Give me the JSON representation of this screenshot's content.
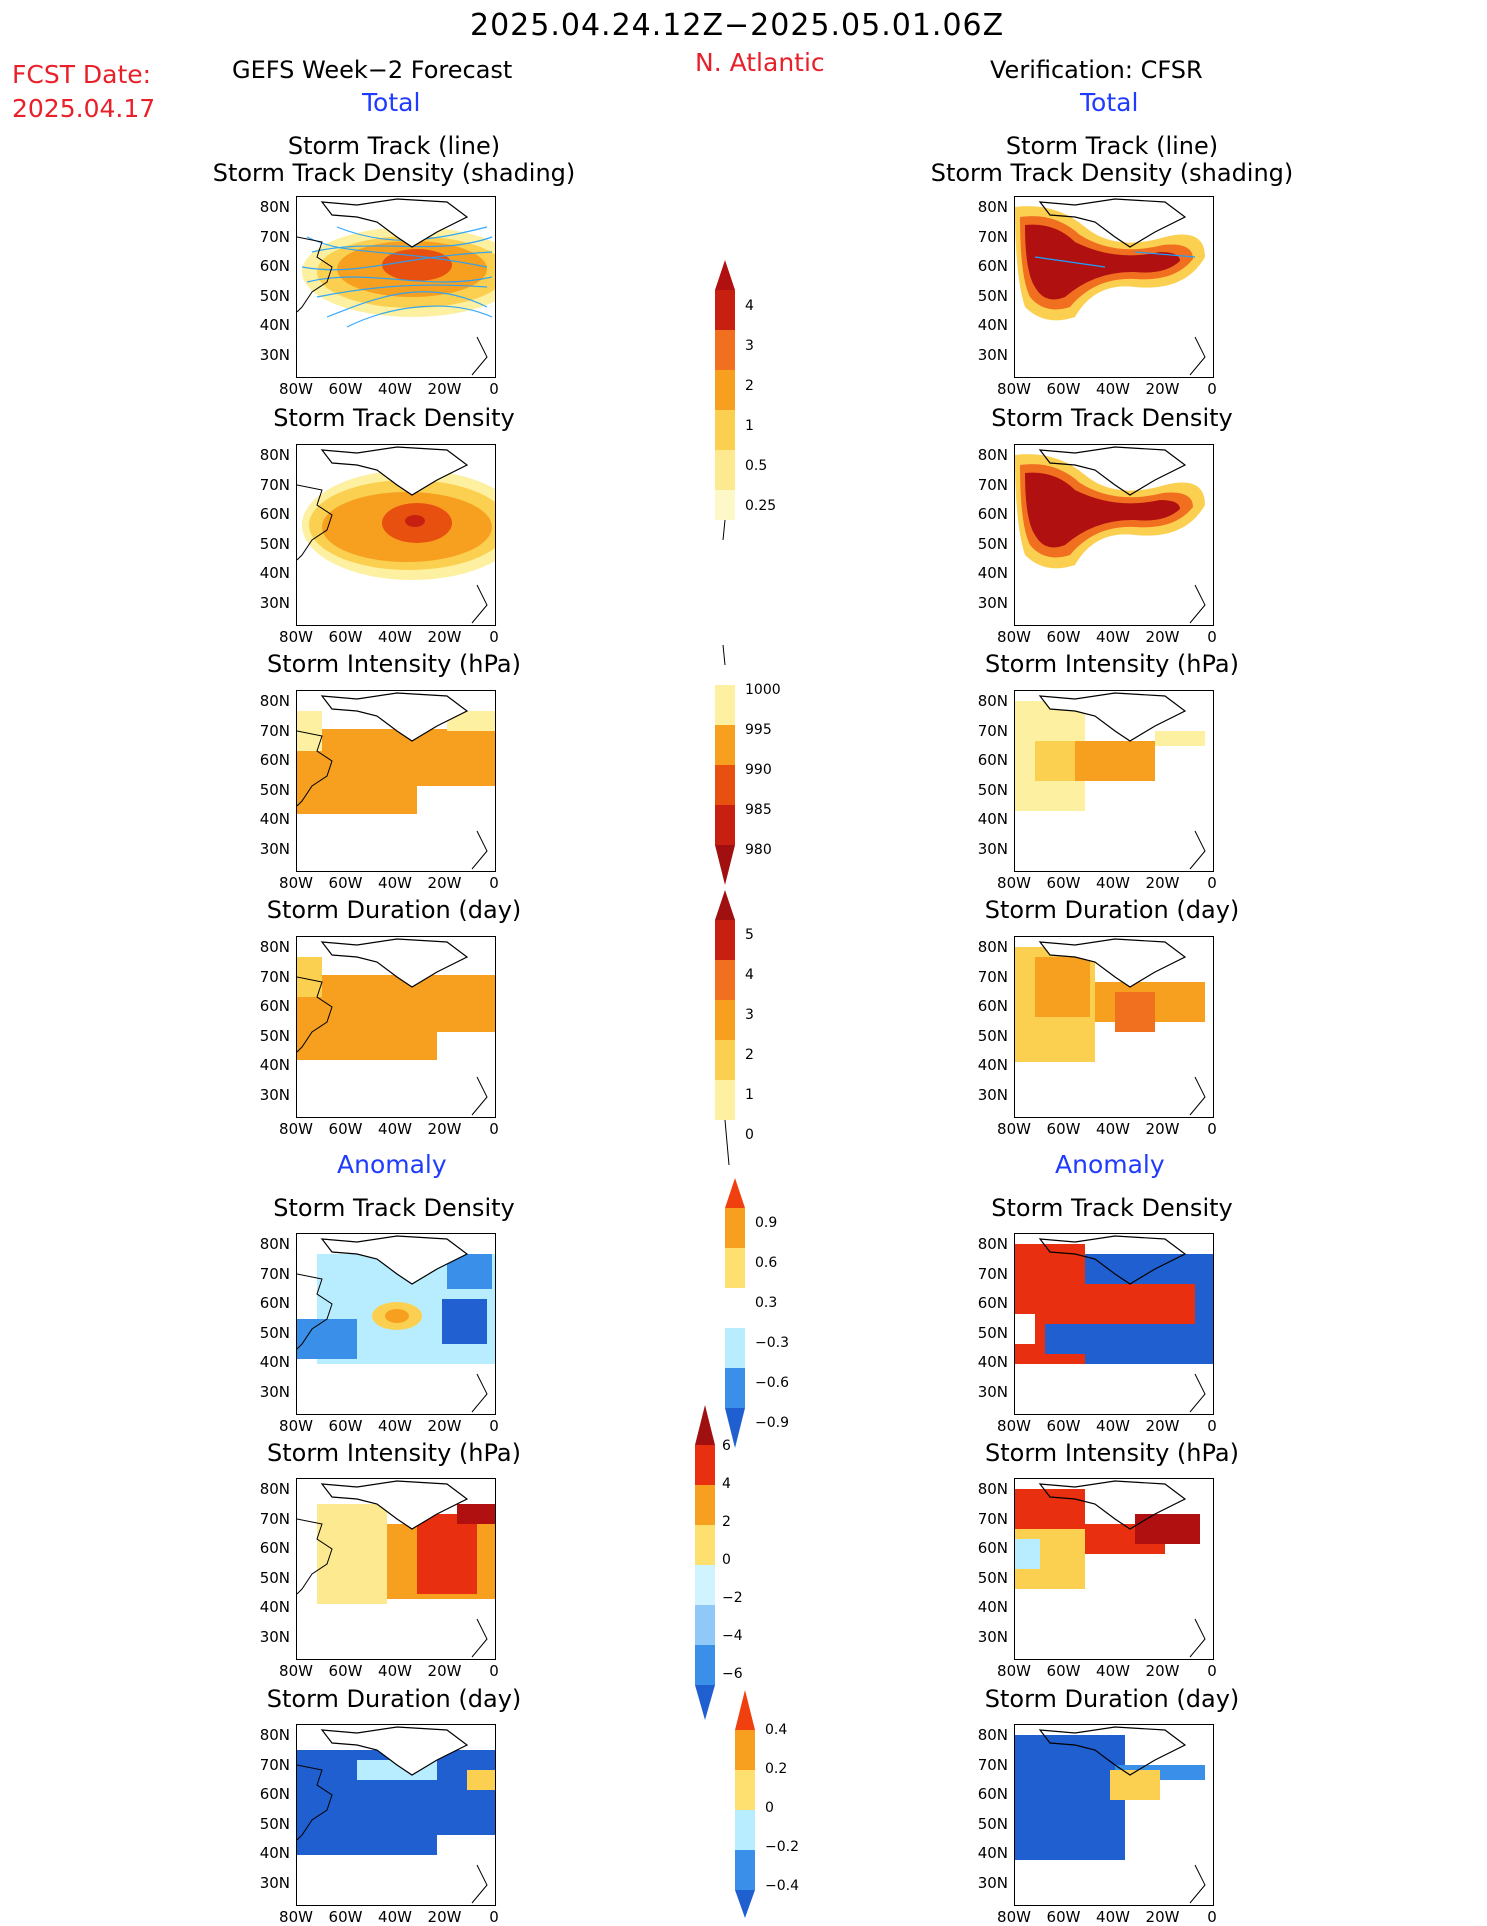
{
  "header": {
    "date_range": "2025.04.24.12Z−2025.05.01.06Z",
    "fcst_label": "FCST Date:",
    "fcst_date": "2025.04.17",
    "left_model": "GEFS Week−2 Forecast",
    "region": "N. Atlantic",
    "right_model": "Verification: CFSR"
  },
  "sections": {
    "total": "Total",
    "anomaly": "Anomaly"
  },
  "panels": [
    {
      "title_line1": "Storm Track (line)",
      "title_line2": "Storm Track Density (shading)"
    },
    {
      "title_line1": "Storm Track Density"
    },
    {
      "title_line1": "Storm Intensity (hPa)"
    },
    {
      "title_line1": "Storm Duration (day)"
    },
    {
      "title_line1": "Storm Track Density"
    },
    {
      "title_line1": "Storm Intensity (hPa)"
    },
    {
      "title_line1": "Storm Duration (day)"
    }
  ],
  "axes": {
    "lat_labels": [
      "80N",
      "70N",
      "60N",
      "50N",
      "40N",
      "30N"
    ],
    "lon_labels": [
      "80W",
      "60W",
      "40W",
      "20W",
      "0"
    ]
  },
  "colorbars": {
    "density_total": [
      "4",
      "3",
      "2",
      "1",
      "0.5",
      "0.25"
    ],
    "intensity_total": [
      "1000",
      "995",
      "990",
      "985",
      "980"
    ],
    "duration_total": [
      "5",
      "4",
      "3",
      "2",
      "1",
      "0"
    ],
    "density_anom": [
      "0.9",
      "0.6",
      "0.3",
      "−0.3",
      "−0.6",
      "−0.9"
    ],
    "intensity_anom": [
      "6",
      "4",
      "2",
      "0",
      "−2",
      "−4",
      "−6"
    ],
    "duration_anom": [
      "0.4",
      "0.2",
      "0",
      "−0.2",
      "−0.4"
    ]
  },
  "colors": {
    "title_red": "#e8202a",
    "section_blue": "#1f3bff"
  }
}
